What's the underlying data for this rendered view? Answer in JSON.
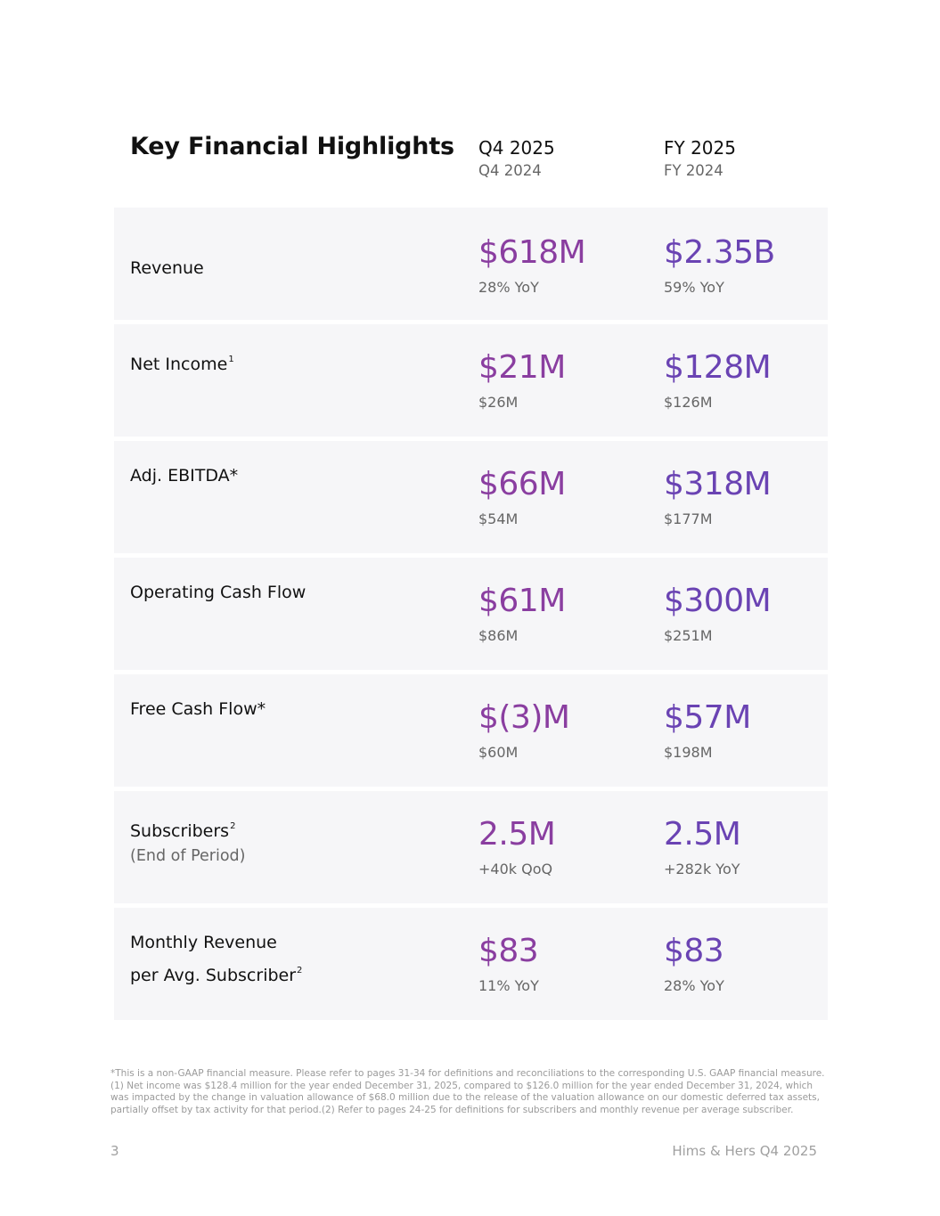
{
  "title": "Key Financial Highlights",
  "columns": [
    {
      "current": "Q4 2025",
      "prior": "Q4 2024"
    },
    {
      "current": "FY 2025",
      "prior": "FY 2024"
    }
  ],
  "rows": [
    {
      "label": "Revenue",
      "q_value": "$618M",
      "q_sub": "28% YoY",
      "fy_value": "$2.35B",
      "fy_sub": "59% YoY"
    },
    {
      "label": "Net Income",
      "sup": "1",
      "q_value": "$21M",
      "q_sub": "$26M",
      "fy_value": "$128M",
      "fy_sub": "$126M"
    },
    {
      "label": "Adj. EBITDA*",
      "q_value": "$66M",
      "q_sub": "$54M",
      "fy_value": "$318M",
      "fy_sub": "$177M"
    },
    {
      "label": "Operating Cash Flow",
      "q_value": "$61M",
      "q_sub": "$86M",
      "fy_value": "$300M",
      "fy_sub": "$251M"
    },
    {
      "label": "Free Cash Flow*",
      "q_value": "$(3)M",
      "q_sub": "$60M",
      "fy_value": "$57M",
      "fy_sub": "$198M"
    },
    {
      "label": "Subscribers",
      "sup": "2",
      "sublabel": "(End of Period)",
      "q_value": "2.5M",
      "q_sub": "+40k QoQ",
      "fy_value": "2.5M",
      "fy_sub": "+282k YoY"
    },
    {
      "label": "Monthly Revenue",
      "label2": "per Avg. Subscriber",
      "sup": "2",
      "q_value": "$83",
      "q_sub": "11% YoY",
      "fy_value": "$83",
      "fy_sub": "28% YoY"
    }
  ],
  "footnote": "*This is a non-GAAP financial measure. Please refer to pages 31-34 for definitions and reconciliations to the corresponding U.S. GAAP financial measure. (1) Net income was $128.4 million for the year ended December 31, 2025, compared to $126.0 million for the year ended December 31, 2024, which was impacted by the change in valuation allowance of $68.0 million due to the release of the valuation allowance on our domestic deferred tax assets, partially offset by tax activity for that period.(2) Refer to pages 24-25 for definitions for subscribers and monthly revenue per average subscriber.",
  "page_number": "3",
  "brand": "Hims & Hers Q4 2025",
  "colors": {
    "quarter_value": "#8a3ea0",
    "year_value": "#6a43b3",
    "row_bg": "#f6f6f8"
  }
}
